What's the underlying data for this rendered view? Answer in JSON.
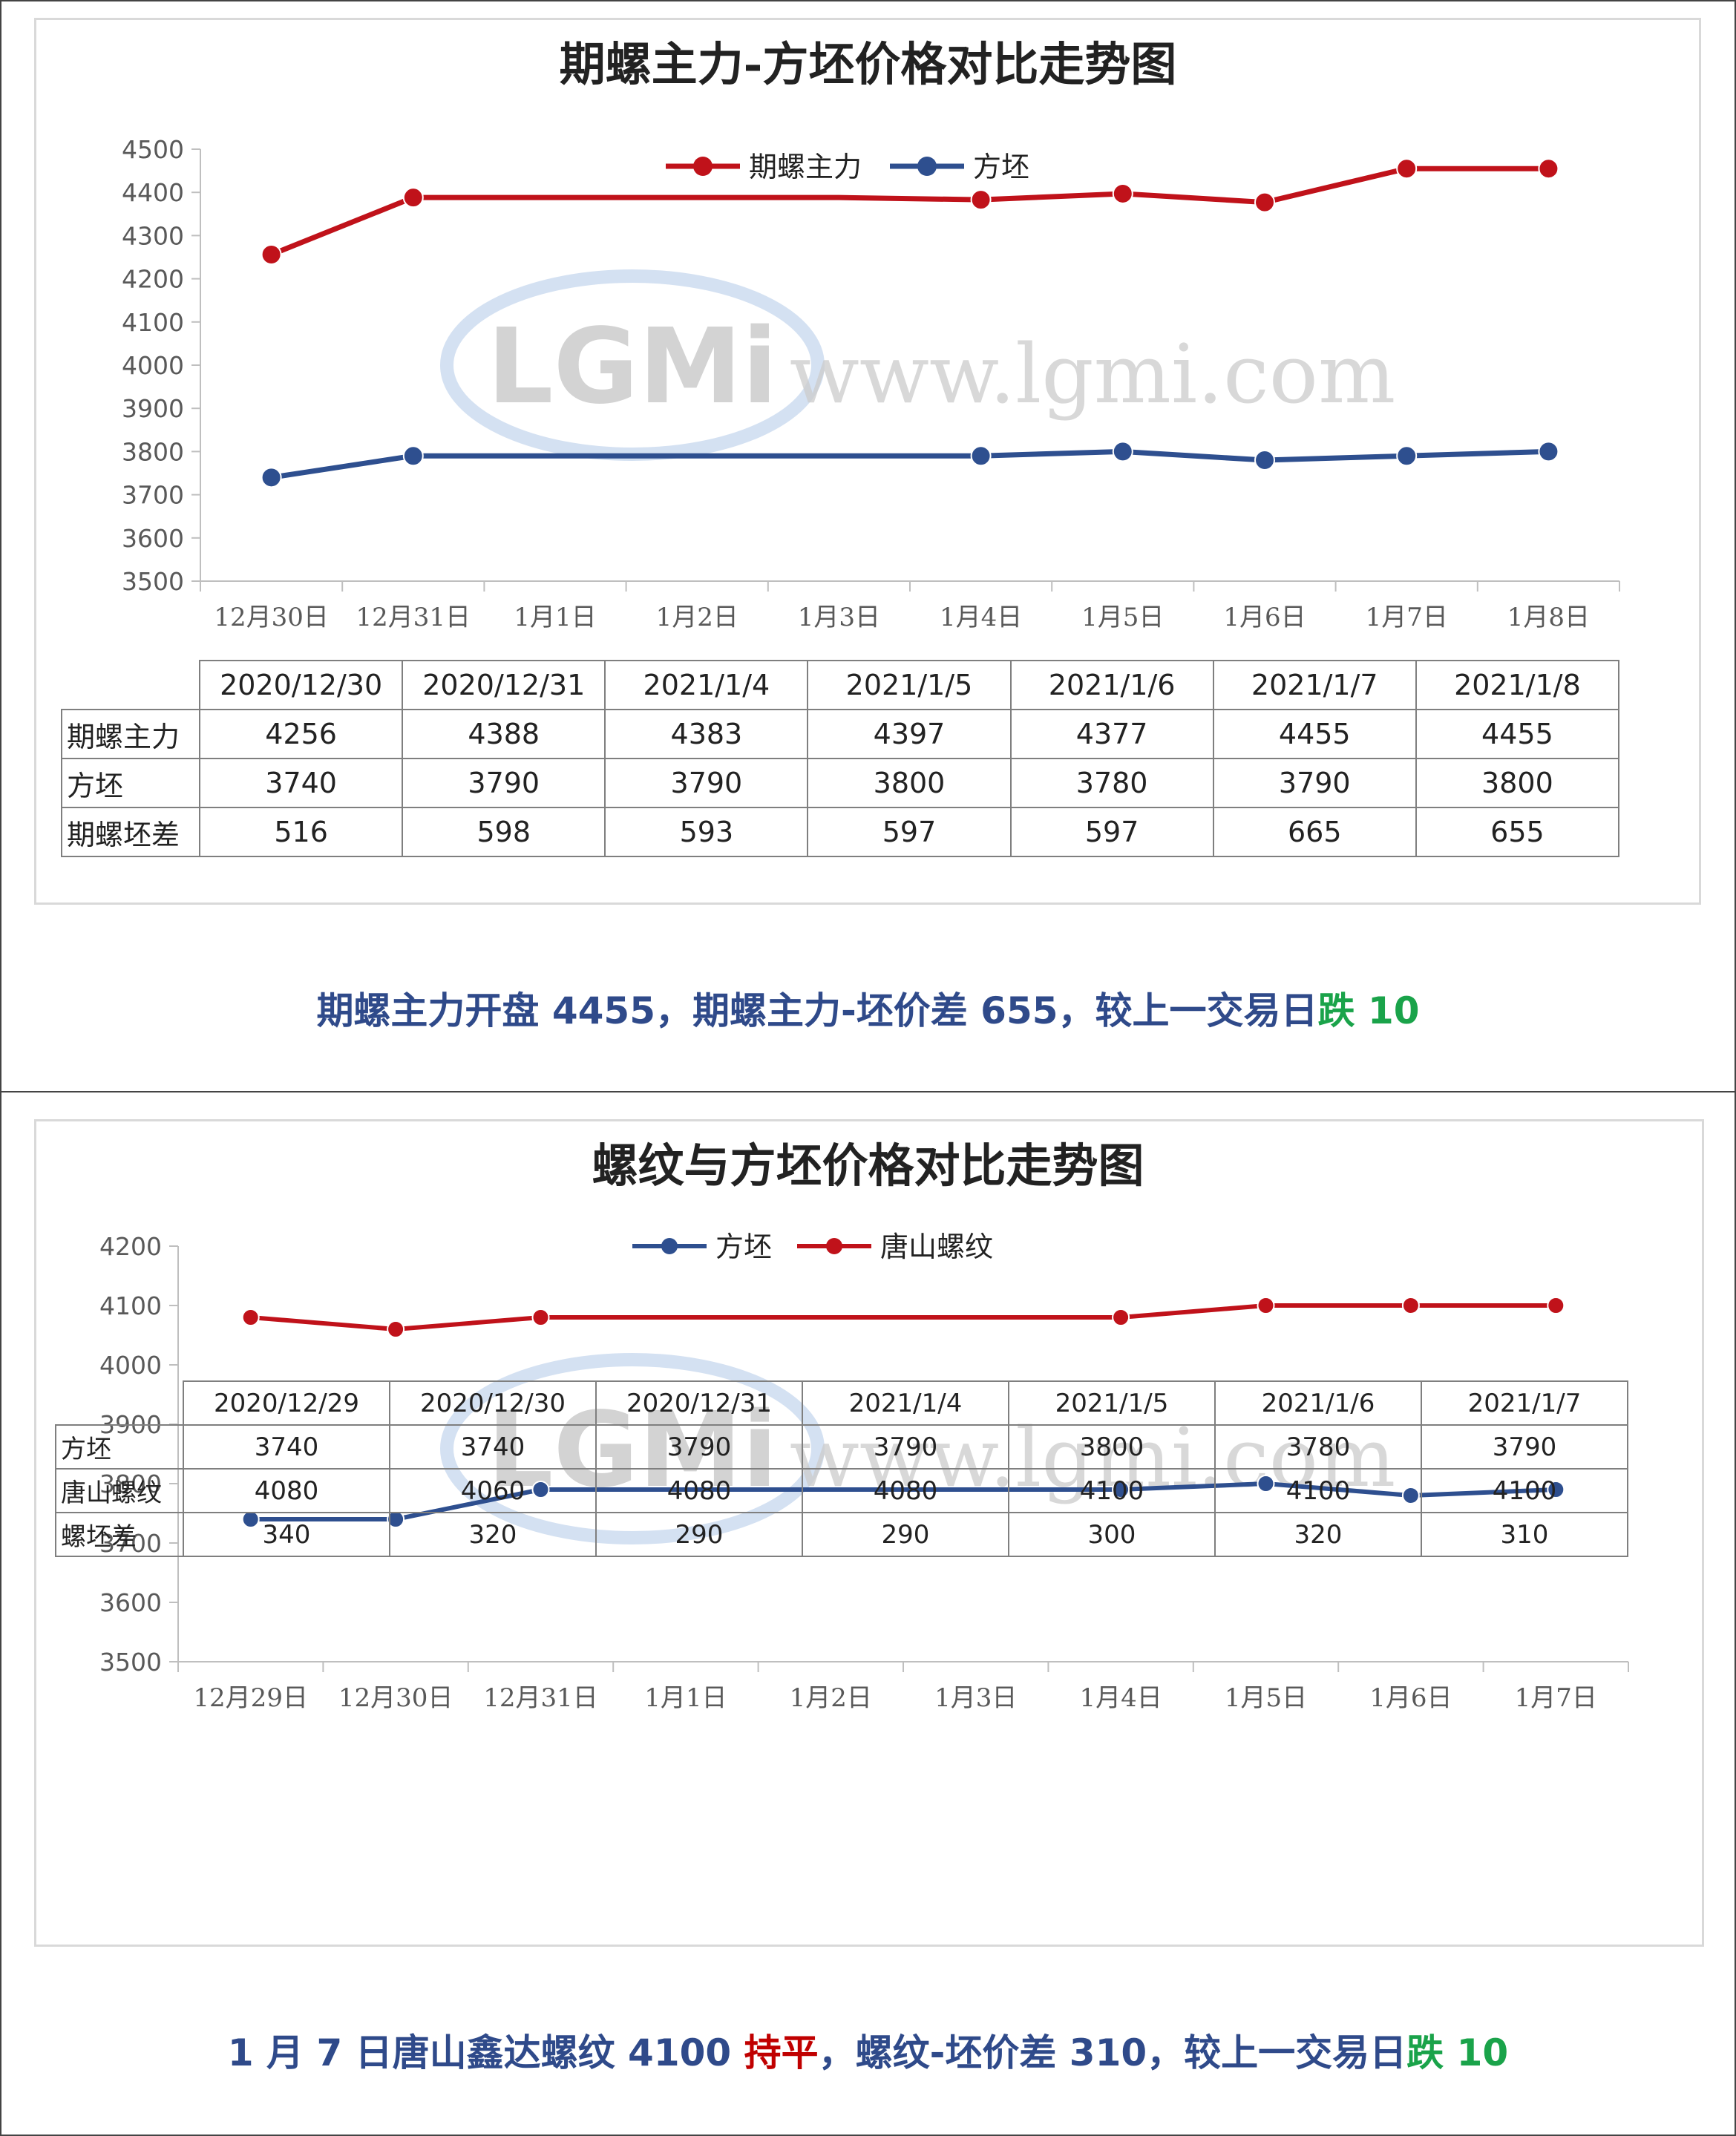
{
  "colors": {
    "red_series": "#c0121a",
    "blue_series": "#2e4f8f",
    "green": "#1aa34a",
    "summary": "#2f4a8a"
  },
  "chart1": {
    "title": "期螺主力-方坯价格对比走势图",
    "legend": [
      "期螺主力",
      "方坯"
    ],
    "watermark": "www.lgmi.com",
    "logo": "LGMi"
  },
  "chart2": {
    "title": "螺纹与方坯价格对比走势图",
    "legend": [
      "方坯",
      "唐山螺纹"
    ],
    "watermark": "www.lgmi.com",
    "logo": "LGMi"
  },
  "chart_data": [
    {
      "type": "line",
      "title": "期螺主力-方坯价格对比走势图",
      "categories": [
        "12月30日",
        "12月31日",
        "1月1日",
        "1月2日",
        "1月3日",
        "1月4日",
        "1月5日",
        "1月6日",
        "1月7日",
        "1月8日"
      ],
      "ylim": [
        3500,
        4500
      ],
      "yticks": [
        3500,
        3600,
        3700,
        3800,
        3900,
        4000,
        4100,
        4200,
        4300,
        4400,
        4500
      ],
      "legend_position": "top",
      "series": [
        {
          "name": "期螺主力",
          "color": "#c0121a",
          "values": [
            4256,
            4388,
            4388,
            4388,
            4388,
            4383,
            4397,
            4377,
            4455,
            4455
          ]
        },
        {
          "name": "方坯",
          "color": "#2e4f8f",
          "values": [
            3740,
            3790,
            3790,
            3790,
            3790,
            3790,
            3800,
            3780,
            3790,
            3800
          ]
        }
      ],
      "markers": {
        "期螺主力": [
          "12月30日",
          "12月31日",
          "1月4日",
          "1月5日",
          "1月6日",
          "1月7日",
          "1月8日"
        ],
        "方坯": [
          "12月30日",
          "12月31日",
          "1月4日",
          "1月5日",
          "1月6日",
          "1月7日",
          "1月8日"
        ]
      },
      "table": {
        "headers": [
          "2020/12/30",
          "2020/12/31",
          "2021/1/4",
          "2021/1/5",
          "2021/1/6",
          "2021/1/7",
          "2021/1/8"
        ],
        "rows": [
          {
            "label": "期螺主力",
            "values": [
              "4256",
              "4388",
              "4383",
              "4397",
              "4377",
              "4455",
              "4455"
            ]
          },
          {
            "label": "方坯",
            "values": [
              "3740",
              "3790",
              "3790",
              "3800",
              "3780",
              "3790",
              "3800"
            ]
          },
          {
            "label": "期螺坯差",
            "values": [
              "516",
              "598",
              "593",
              "597",
              "597",
              "665",
              "655"
            ]
          }
        ]
      }
    },
    {
      "type": "line",
      "title": "螺纹与方坯价格对比走势图",
      "categories": [
        "12月29日",
        "12月30日",
        "12月31日",
        "1月1日",
        "1月2日",
        "1月3日",
        "1月4日",
        "1月5日",
        "1月6日",
        "1月7日"
      ],
      "ylim": [
        3500,
        4200
      ],
      "yticks": [
        3500,
        3600,
        3700,
        3800,
        3900,
        4000,
        4100,
        4200
      ],
      "legend_position": "top",
      "series": [
        {
          "name": "方坯",
          "color": "#2e4f8f",
          "values": [
            3740,
            3740,
            3790,
            3790,
            3790,
            3790,
            3790,
            3800,
            3780,
            3790
          ]
        },
        {
          "name": "唐山螺纹",
          "color": "#c0121a",
          "values": [
            4080,
            4060,
            4080,
            4080,
            4080,
            4080,
            4080,
            4100,
            4100,
            4100
          ]
        }
      ],
      "markers": {
        "方坯": [
          "12月29日",
          "12月30日",
          "12月31日",
          "1月4日",
          "1月5日",
          "1月6日",
          "1月7日"
        ],
        "唐山螺纹": [
          "12月29日",
          "12月30日",
          "12月31日",
          "1月4日",
          "1月5日",
          "1月6日",
          "1月7日"
        ]
      },
      "table": {
        "headers": [
          "2020/12/29",
          "2020/12/30",
          "2020/12/31",
          "2021/1/4",
          "2021/1/5",
          "2021/1/6",
          "2021/1/7"
        ],
        "rows": [
          {
            "label": "方坯",
            "values": [
              "3740",
              "3740",
              "3790",
              "3790",
              "3800",
              "3780",
              "3790"
            ]
          },
          {
            "label": "唐山螺纹",
            "values": [
              "4080",
              "4060",
              "4080",
              "4080",
              "4100",
              "4100",
              "4100"
            ]
          },
          {
            "label": "螺坯差",
            "values": [
              "340",
              "320",
              "290",
              "290",
              "300",
              "320",
              "310"
            ]
          }
        ]
      }
    }
  ],
  "summary1": {
    "part1": "期螺主力开盘 4455，期螺主力-坯价差 655，较上一交易日",
    "part2": "跌 10"
  },
  "summary2": {
    "part1": "1 月 7 日唐山鑫达螺纹 4100 ",
    "part2": "持平",
    "part3": "，螺纹-坯价差 310，较上一交易日",
    "part4": "跌 10"
  }
}
